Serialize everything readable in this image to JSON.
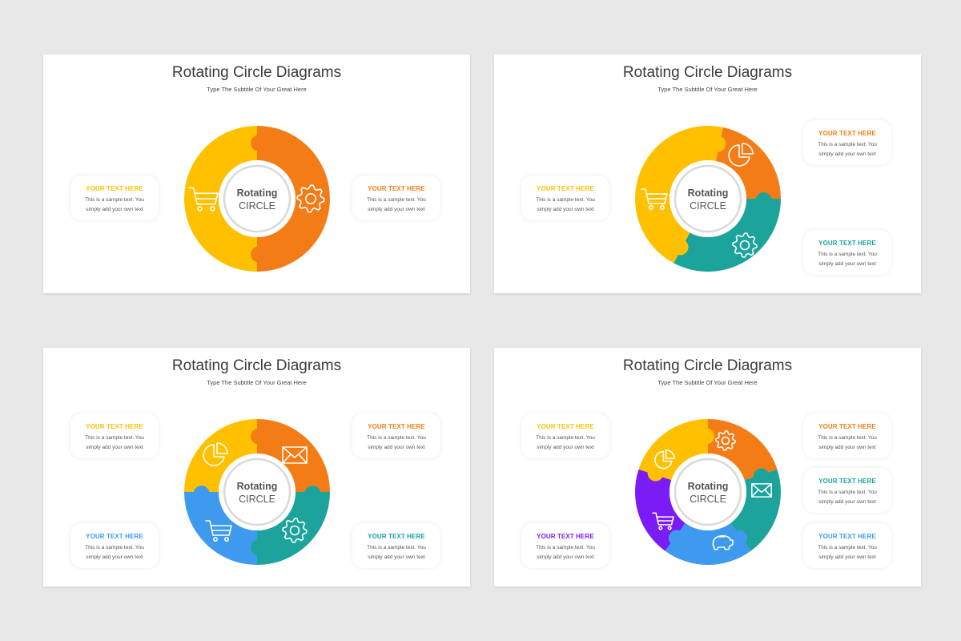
{
  "colors": {
    "yellow": "#FFC000",
    "orange": "#F47C17",
    "teal": "#1BA39C",
    "blue": "#3D9AEF",
    "purple": "#7B1BF5"
  },
  "slides": [
    {
      "title": "Rotating Circle Diagrams",
      "subtitle": "Type The Subtitle Of Your Great Here",
      "center": {
        "line1": "Rotating",
        "line2": "CIRCLE"
      },
      "segments": [
        {
          "color": "yellow",
          "icon": "shopping-cart-icon"
        },
        {
          "color": "orange",
          "icon": "gear-icon"
        }
      ],
      "boxes": [
        {
          "heading": "YOUR TEXT HERE",
          "color": "yellow",
          "line1": "This is a sample text. You",
          "line2": "simply add your own text"
        },
        {
          "heading": "YOUR TEXT HERE",
          "color": "orange",
          "line1": "This is a sample text. You",
          "line2": "simply add your own text"
        }
      ]
    },
    {
      "title": "Rotating Circle Diagrams",
      "subtitle": "Type The Subtitle Of Your Great Here",
      "center": {
        "line1": "Rotating",
        "line2": "CIRCLE"
      },
      "segments": [
        {
          "color": "yellow",
          "icon": "shopping-cart-icon"
        },
        {
          "color": "orange",
          "icon": "pie-chart-icon"
        },
        {
          "color": "teal",
          "icon": "gear-icon"
        }
      ],
      "boxes": [
        {
          "heading": "YOUR TEXT HERE",
          "color": "yellow",
          "line1": "This is a sample text. You",
          "line2": "simply add your own text"
        },
        {
          "heading": "YOUR TEXT HERE",
          "color": "orange",
          "line1": "This is a sample text. You",
          "line2": "simply add your own text"
        },
        {
          "heading": "YOUR TEXT HERE",
          "color": "teal",
          "line1": "This is a sample text. You",
          "line2": "simply add your own text"
        }
      ]
    },
    {
      "title": "Rotating Circle Diagrams",
      "subtitle": "Type The Subtitle Of Your Great Here",
      "center": {
        "line1": "Rotating",
        "line2": "CIRCLE"
      },
      "segments": [
        {
          "color": "yellow",
          "icon": "pie-chart-icon"
        },
        {
          "color": "orange",
          "icon": "envelope-icon"
        },
        {
          "color": "teal",
          "icon": "gear-icon"
        },
        {
          "color": "blue",
          "icon": "shopping-cart-icon"
        }
      ],
      "boxes": [
        {
          "heading": "YOUR TEXT HERE",
          "color": "yellow",
          "line1": "This is a sample text. You",
          "line2": "simply add your own text"
        },
        {
          "heading": "YOUR TEXT HERE",
          "color": "orange",
          "line1": "This is a sample text. You",
          "line2": "simply add your own text"
        },
        {
          "heading": "YOUR TEXT HERE",
          "color": "blue",
          "line1": "This is a sample text. You",
          "line2": "simply add your own text"
        },
        {
          "heading": "YOUR TEXT HERE",
          "color": "teal",
          "line1": "This is a sample text. You",
          "line2": "simply add your own text"
        }
      ]
    },
    {
      "title": "Rotating Circle Diagrams",
      "subtitle": "Type The Subtitle Of Your Great Here",
      "center": {
        "line1": "Rotating",
        "line2": "CIRCLE"
      },
      "segments": [
        {
          "color": "yellow",
          "icon": "pie-chart-icon"
        },
        {
          "color": "orange",
          "icon": "gear-icon"
        },
        {
          "color": "teal",
          "icon": "envelope-icon"
        },
        {
          "color": "blue",
          "icon": "piggy-bank-icon"
        },
        {
          "color": "purple",
          "icon": "shopping-cart-icon"
        }
      ],
      "boxes": [
        {
          "heading": "YOUR TEXT HERE",
          "color": "yellow",
          "line1": "This is a sample text. You",
          "line2": "simply add your own text"
        },
        {
          "heading": "YOUR TEXT HERE",
          "color": "purple",
          "line1": "This is a sample text. You",
          "line2": "simply add your own text"
        },
        {
          "heading": "YOUR TEXT HERE",
          "color": "orange",
          "line1": "This is a sample text. You",
          "line2": "simply add your own text"
        },
        {
          "heading": "YOUR TEXT HERE",
          "color": "teal",
          "line1": "This is a sample text. You",
          "line2": "simply add your own text"
        },
        {
          "heading": "YOUR TEXT HERE",
          "color": "blue",
          "line1": "This is a sample text. You",
          "line2": "simply add your own text"
        }
      ]
    }
  ]
}
